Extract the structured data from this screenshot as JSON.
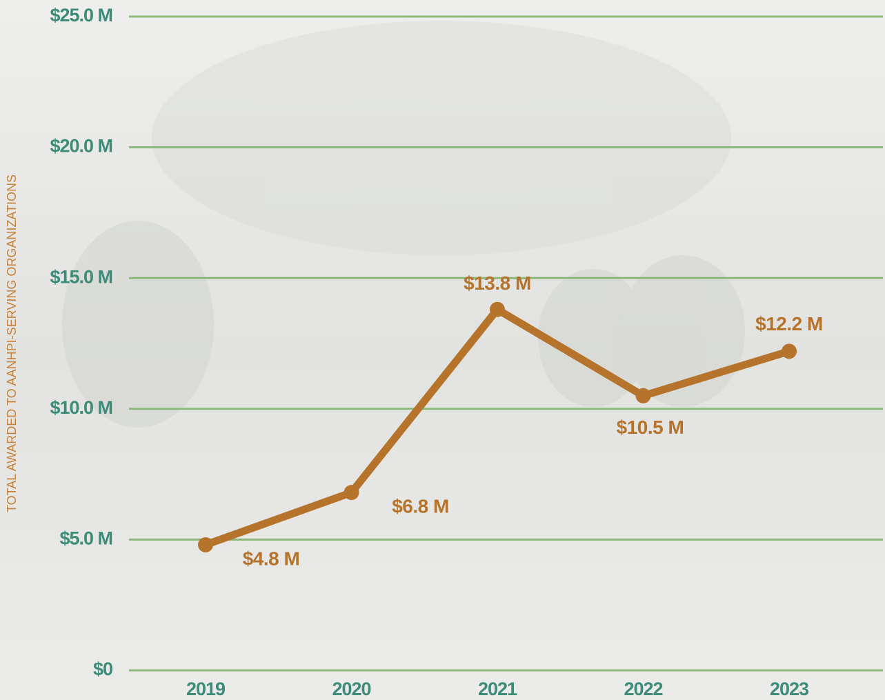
{
  "chart_data": {
    "type": "line",
    "y_label": "TOTAL AWARDED TO AANHPI-SERVING ORGANIZATIONS",
    "categories": [
      "2019",
      "2020",
      "2021",
      "2022",
      "2023"
    ],
    "series": [
      {
        "color": "#b5732b",
        "values": [
          4.8,
          6.8,
          13.8,
          10.5,
          12.2
        ],
        "value_labels": [
          "$4.8 M",
          "$6.8 M",
          "$13.8 M",
          "$10.5 M",
          "$12.2 M"
        ]
      }
    ],
    "ylim": [
      0,
      25
    ],
    "yticks": [
      {
        "value": 0,
        "label": "$0"
      },
      {
        "value": 5,
        "label": "$5.0 M"
      },
      {
        "value": 10,
        "label": "$10.0 M"
      },
      {
        "value": 15,
        "label": "$15.0 M"
      },
      {
        "value": 20,
        "label": "$20.0 M"
      },
      {
        "value": 25,
        "label": "$25.0 M"
      }
    ],
    "grid": true,
    "grid_color": "#8cb87c",
    "tick_color": "#3d8c78"
  }
}
